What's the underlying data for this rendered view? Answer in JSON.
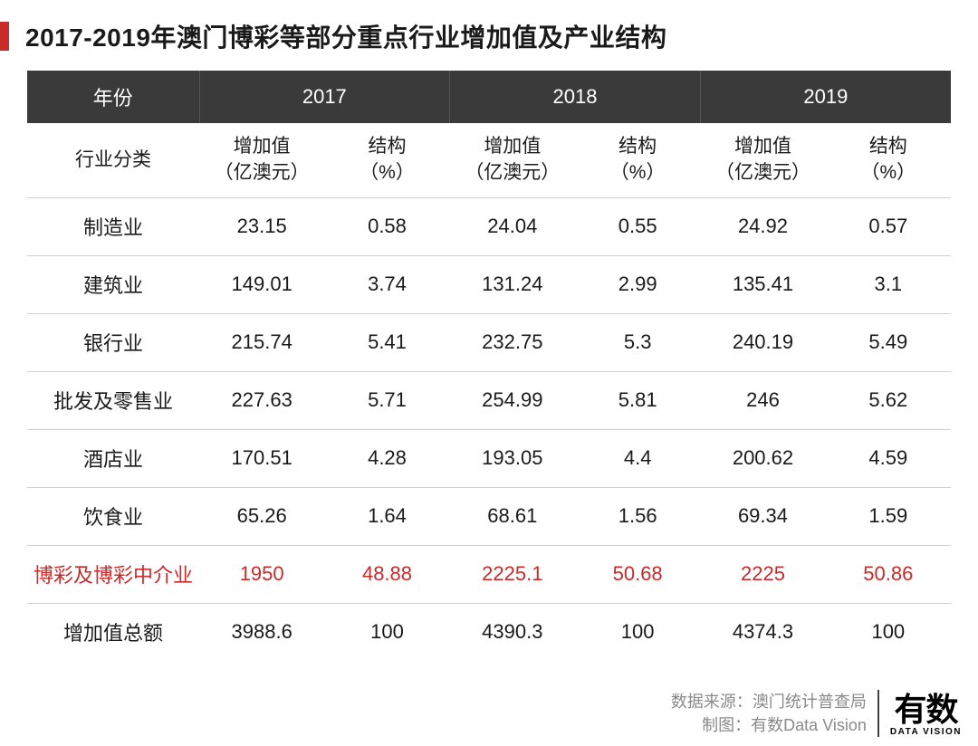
{
  "title": "2017-2019年澳门博彩等部分重点行业增加值及产业结构",
  "header": {
    "year_label": "年份",
    "category_label": "行业分类",
    "years": [
      "2017",
      "2018",
      "2019"
    ],
    "sub_value": "增加值\n（亿澳元）",
    "sub_pct": "结构\n（%）"
  },
  "highlight_color": "#c92a2a",
  "header_bg": "#3a3a3a",
  "rows": [
    {
      "label": "制造业",
      "v2017": "23.15",
      "p2017": "0.58",
      "v2018": "24.04",
      "p2018": "0.55",
      "v2019": "24.92",
      "p2019": "0.57",
      "hl": false
    },
    {
      "label": "建筑业",
      "v2017": "149.01",
      "p2017": "3.74",
      "v2018": "131.24",
      "p2018": "2.99",
      "v2019": "135.41",
      "p2019": "3.1",
      "hl": false
    },
    {
      "label": "银行业",
      "v2017": "215.74",
      "p2017": "5.41",
      "v2018": "232.75",
      "p2018": "5.3",
      "v2019": "240.19",
      "p2019": "5.49",
      "hl": false
    },
    {
      "label": "批发及零售业",
      "v2017": "227.63",
      "p2017": "5.71",
      "v2018": "254.99",
      "p2018": "5.81",
      "v2019": "246",
      "p2019": "5.62",
      "hl": false
    },
    {
      "label": "酒店业",
      "v2017": "170.51",
      "p2017": "4.28",
      "v2018": "193.05",
      "p2018": "4.4",
      "v2019": "200.62",
      "p2019": "4.59",
      "hl": false
    },
    {
      "label": "饮食业",
      "v2017": "65.26",
      "p2017": "1.64",
      "v2018": "68.61",
      "p2018": "1.56",
      "v2019": "69.34",
      "p2019": "1.59",
      "hl": false
    },
    {
      "label": "博彩及博彩中介业",
      "v2017": "1950",
      "p2017": "48.88",
      "v2018": "2225.1",
      "p2018": "50.68",
      "v2019": "2225",
      "p2019": "50.86",
      "hl": true
    },
    {
      "label": "增加值总额",
      "v2017": "3988.6",
      "p2017": "100",
      "v2018": "4390.3",
      "p2018": "100",
      "v2019": "4374.3",
      "p2019": "100",
      "hl": false
    }
  ],
  "footer": {
    "source_label": "数据来源：",
    "source_value": "澳门统计普查局",
    "chart_label": "制图：",
    "chart_value": "有数Data Vision",
    "logo_main": "有数",
    "logo_sub": "DATA VISION"
  }
}
